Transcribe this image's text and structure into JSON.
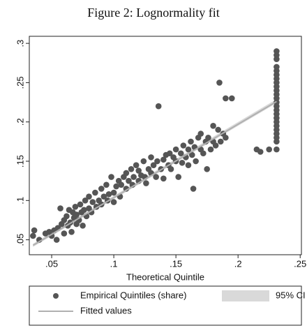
{
  "chart_data": {
    "type": "scatter",
    "title": "Figure 2: Lognormality fit",
    "x_label": "Theoretical Quintile",
    "xlim": [
      0.032,
      0.251
    ],
    "ylim": [
      0.031,
      0.309
    ],
    "xticks": [
      {
        "value": 0.05,
        "label": ".05"
      },
      {
        "value": 0.1,
        "label": ".1"
      },
      {
        "value": 0.15,
        "label": ".15"
      },
      {
        "value": 0.2,
        "label": ".2"
      },
      {
        "value": 0.25,
        "label": ".25"
      }
    ],
    "yticks": [
      {
        "value": 0.05,
        "label": ".05"
      },
      {
        "value": 0.1,
        "label": ".1"
      },
      {
        "value": 0.15,
        "label": ".15"
      },
      {
        "value": 0.2,
        "label": ".2"
      },
      {
        "value": 0.25,
        "label": ".25"
      },
      {
        "value": 0.3,
        "label": ".3"
      }
    ],
    "series": [
      {
        "name": "95% CI",
        "kind": "band",
        "color": "#d9d9d9",
        "x": [
          0.035,
          0.231
        ],
        "lower": [
          0.041,
          0.224
        ],
        "upper": [
          0.045,
          0.229
        ]
      },
      {
        "name": "Empirical Quintiles (share)",
        "kind": "scatter",
        "color": "#555555",
        "x": [
          0.035,
          0.036,
          0.04,
          0.045,
          0.048,
          0.05,
          0.052,
          0.054,
          0.055,
          0.057,
          0.058,
          0.06,
          0.06,
          0.062,
          0.063,
          0.064,
          0.065,
          0.066,
          0.067,
          0.068,
          0.069,
          0.07,
          0.07,
          0.072,
          0.073,
          0.074,
          0.075,
          0.076,
          0.077,
          0.078,
          0.08,
          0.08,
          0.082,
          0.083,
          0.085,
          0.086,
          0.088,
          0.09,
          0.09,
          0.092,
          0.094,
          0.095,
          0.096,
          0.098,
          0.1,
          0.1,
          0.102,
          0.104,
          0.105,
          0.106,
          0.108,
          0.11,
          0.11,
          0.112,
          0.114,
          0.115,
          0.116,
          0.118,
          0.12,
          0.12,
          0.122,
          0.124,
          0.125,
          0.126,
          0.128,
          0.13,
          0.13,
          0.132,
          0.134,
          0.135,
          0.136,
          0.138,
          0.14,
          0.14,
          0.142,
          0.144,
          0.145,
          0.146,
          0.148,
          0.15,
          0.15,
          0.152,
          0.154,
          0.155,
          0.156,
          0.158,
          0.16,
          0.16,
          0.162,
          0.163,
          0.164,
          0.165,
          0.166,
          0.168,
          0.17,
          0.17,
          0.172,
          0.174,
          0.175,
          0.176,
          0.178,
          0.18,
          0.18,
          0.182,
          0.184,
          0.185,
          0.186,
          0.188,
          0.19,
          0.19,
          0.195,
          0.215,
          0.218,
          0.225,
          0.231,
          0.231,
          0.231,
          0.231,
          0.231,
          0.231,
          0.231,
          0.231,
          0.231,
          0.231,
          0.231,
          0.231,
          0.231,
          0.231,
          0.231,
          0.231,
          0.231,
          0.231,
          0.231,
          0.231,
          0.231,
          0.231,
          0.231,
          0.231
        ],
        "values": [
          0.055,
          0.062,
          0.05,
          0.058,
          0.06,
          0.055,
          0.062,
          0.05,
          0.065,
          0.09,
          0.07,
          0.058,
          0.075,
          0.08,
          0.068,
          0.088,
          0.072,
          0.06,
          0.085,
          0.078,
          0.092,
          0.07,
          0.082,
          0.075,
          0.095,
          0.085,
          0.068,
          0.088,
          0.1,
          0.08,
          0.09,
          0.105,
          0.085,
          0.098,
          0.11,
          0.092,
          0.1,
          0.095,
          0.115,
          0.105,
          0.12,
          0.1,
          0.108,
          0.13,
          0.11,
          0.098,
          0.118,
          0.125,
          0.105,
          0.12,
          0.13,
          0.115,
          0.135,
          0.125,
          0.14,
          0.12,
          0.13,
          0.145,
          0.125,
          0.138,
          0.132,
          0.15,
          0.13,
          0.122,
          0.14,
          0.135,
          0.155,
          0.145,
          0.13,
          0.15,
          0.22,
          0.14,
          0.152,
          0.128,
          0.158,
          0.145,
          0.16,
          0.14,
          0.155,
          0.15,
          0.165,
          0.13,
          0.16,
          0.148,
          0.17,
          0.155,
          0.165,
          0.145,
          0.175,
          0.158,
          0.115,
          0.168,
          0.15,
          0.18,
          0.165,
          0.185,
          0.16,
          0.175,
          0.14,
          0.18,
          0.165,
          0.175,
          0.195,
          0.17,
          0.19,
          0.25,
          0.175,
          0.185,
          0.18,
          0.23,
          0.23,
          0.165,
          0.162,
          0.165,
          0.165,
          0.175,
          0.18,
          0.185,
          0.19,
          0.195,
          0.2,
          0.205,
          0.21,
          0.215,
          0.22,
          0.225,
          0.23,
          0.235,
          0.24,
          0.245,
          0.25,
          0.255,
          0.26,
          0.265,
          0.27,
          0.28,
          0.285,
          0.29
        ]
      },
      {
        "name": "Fitted values",
        "kind": "line",
        "color": "#b0b0b0",
        "x": [
          0.035,
          0.231
        ],
        "values": [
          0.043,
          0.226
        ]
      }
    ]
  }
}
